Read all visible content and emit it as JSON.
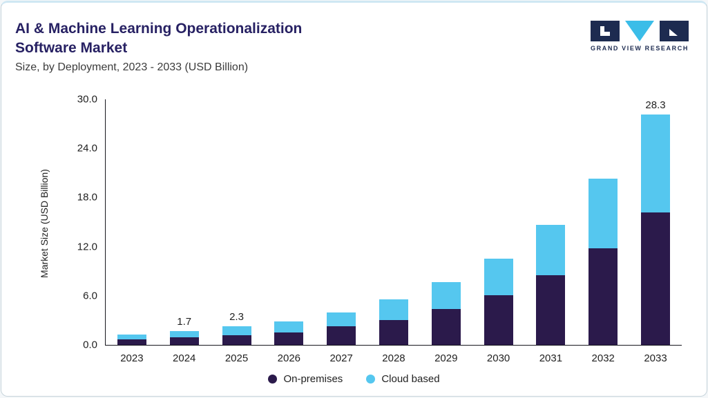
{
  "header": {
    "title_line1": "AI & Machine Learning Operationalization",
    "title_line2": "Software Market",
    "subtitle": "Size, by Deployment, 2023 - 2033 (USD Billion)",
    "brand": "GRAND VIEW RESEARCH"
  },
  "colors": {
    "on_premises": "#2b1a4b",
    "cloud_based": "#55c7ef",
    "title": "#272163",
    "axis": "#16161d",
    "logo_dark": "#1d2b50",
    "logo_cyan": "#3bbde8"
  },
  "chart_data": {
    "type": "bar",
    "stacked": true,
    "title": "AI & Machine Learning Operationalization Software Market",
    "subtitle": "Size, by Deployment, 2023 - 2033 (USD Billion)",
    "xlabel": "",
    "ylabel": "Market Size (USD Billion)",
    "ylim": [
      0,
      30
    ],
    "yticks": [
      "0.0",
      "6.0",
      "12.0",
      "18.0",
      "24.0",
      "30.0"
    ],
    "grid": false,
    "legend_position": "bottom",
    "categories": [
      "2023",
      "2024",
      "2025",
      "2026",
      "2027",
      "2028",
      "2029",
      "2030",
      "2031",
      "2032",
      "2033"
    ],
    "series": [
      {
        "name": "On-premises",
        "color": "#2b1a4b",
        "values": [
          0.7,
          0.9,
          1.2,
          1.5,
          2.3,
          3.0,
          4.4,
          6.1,
          8.5,
          11.8,
          16.3
        ]
      },
      {
        "name": "Cloud based",
        "color": "#55c7ef",
        "values": [
          0.6,
          0.8,
          1.1,
          1.4,
          1.7,
          2.6,
          3.3,
          4.4,
          6.2,
          8.5,
          12.0
        ]
      }
    ],
    "bar_total_labels": [
      "",
      "1.7",
      "2.3",
      "",
      "",
      "",
      "",
      "",
      "",
      "",
      "28.3"
    ]
  }
}
